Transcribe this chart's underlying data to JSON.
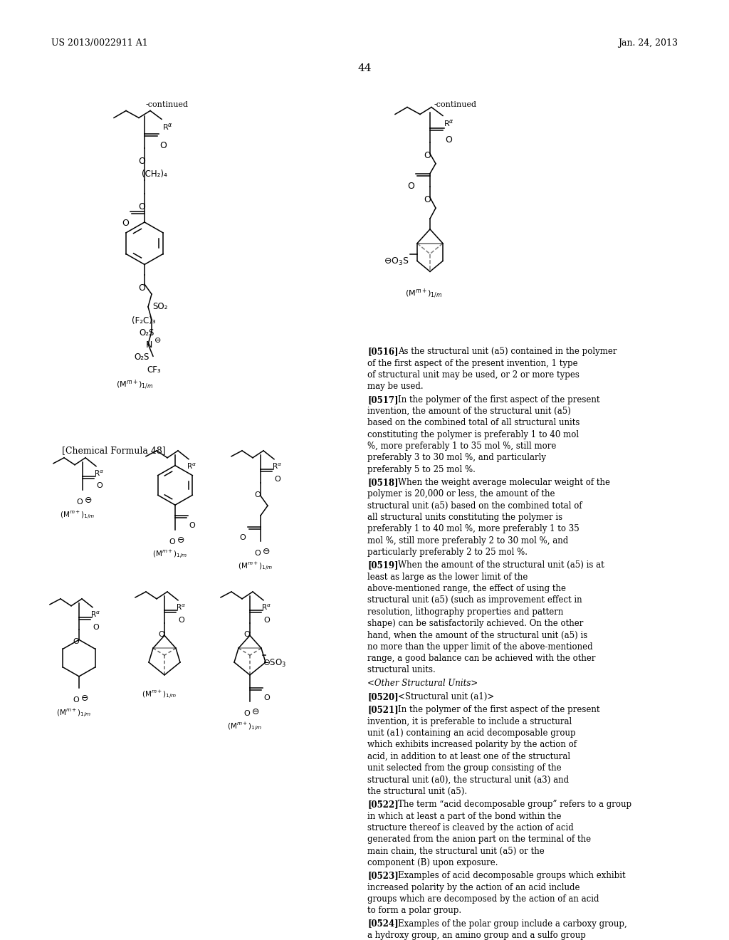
{
  "page_header_left": "US 2013/0022911 A1",
  "page_header_right": "Jan. 24, 2013",
  "page_number": "44",
  "background_color": "#ffffff",
  "text_color": "#000000",
  "continued_label": "-continued",
  "chemical_formula_label": "[Chemical Formula 48]",
  "paragraphs": [
    "[0516]    As the structural unit (a5) contained in the polymer of the first aspect of the present invention, 1 type of structural unit may be used, or 2 or more types may be used.",
    "[0517]    In the polymer of the first aspect of the present invention, the amount of the structural unit (a5) based on the combined total of all structural units constituting the polymer is preferably 1 to 40 mol %, more preferably 1 to 35 mol %, still more preferably 3 to 30 mol %, and particularly preferably 5 to 25 mol %.",
    "[0518]    When the weight average molecular weight of the polymer is 20,000 or less, the amount of the structural unit (a5) based on the combined total of all structural units constituting the polymer is preferably 1 to 40 mol %, more preferably 1 to 35 mol %, still more preferably 2 to 30 mol %, and particularly preferably 2 to 25 mol %.",
    "[0519]    When the amount of the structural unit (a5) is at least as large as the lower limit of the above-mentioned range, the effect of using the structural unit (a5) (such as improvement effect in resolution, lithography properties and pattern shape) can be satisfactorily achieved. On the other hand, when the amount of the structural unit (a5) is no more than the upper limit of the above-mentioned range, a good balance can be achieved with the other structural units.",
    "<Other Structural Units>",
    "[0520]    <Structural unit (a1)>",
    "[0521]    In the polymer of the first aspect of the present invention, it is preferable to include a structural unit (a1) containing an acid decomposable group which exhibits increased polarity by the action of acid, in addition to at least one of the structural unit selected from the group consisting of the structural unit (a0), the structural unit (a3) and the structural unit (a5).",
    "[0522]    The term “acid decomposable group” refers to a group in which at least a part of the bond within the structure thereof is cleaved by the action of acid generated from the anion part on the terminal of the main chain, the structural unit (a5) or the component (B) upon exposure.",
    "[0523]    Examples of acid decomposable groups which exhibit increased polarity by the action of an acid include groups which are decomposed by the action of an acid to form a polar group.",
    "[0524]    Examples of the polar group include a carboxy group, a hydroxy group, an amino group and a sulfo group"
  ]
}
